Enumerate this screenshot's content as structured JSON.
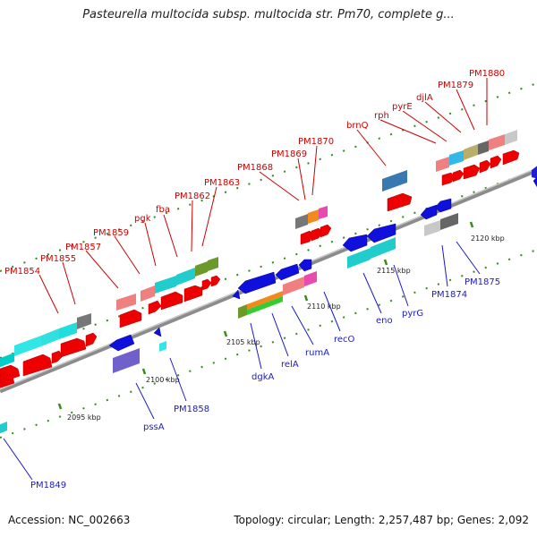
{
  "title": "Pasteurella multocida subsp. multocida str. Pm70, complete g...",
  "footer": {
    "accession": "Accession: NC_002663",
    "stats": "Topology: circular; Length: 2,257,487 bp; Genes: 2,092"
  },
  "scale_labels": [
    "2095 kbp",
    "2100 kbp",
    "2105 kbp",
    "2110 kbp",
    "2115 kbp",
    "2120 kbp"
  ],
  "colors": {
    "backbone": "#8c8c8c",
    "forward_label": "#cc0000",
    "reverse_label": "#1a1acc",
    "tick": "#3a8a1e"
  },
  "forward_gene_labels": [
    "PM1854",
    "PM1855",
    "PM1857",
    "PM1859",
    "pgk",
    "fba",
    "PM1862",
    "PM1863",
    "PM1868",
    "PM1869",
    "PM1870",
    "brnQ",
    "rph",
    "pyrE",
    "djlA",
    "PM1879",
    "PM1880"
  ],
  "reverse_gene_labels": [
    "PM1849",
    "pssA",
    "PM1858",
    "dgkA",
    "relA",
    "rumA",
    "recO",
    "eno",
    "pyrG",
    "PM1874",
    "PM1875"
  ]
}
